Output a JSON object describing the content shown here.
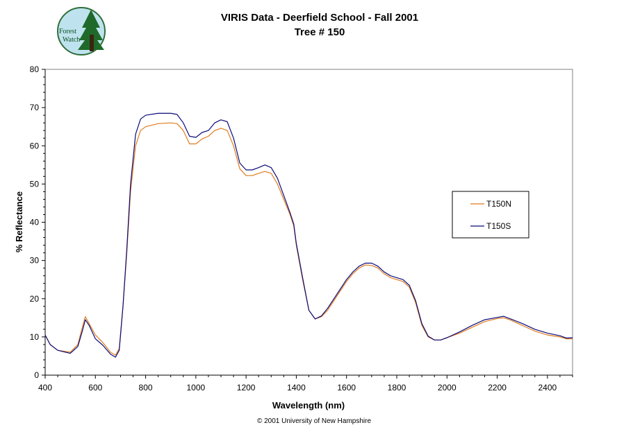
{
  "logo": {
    "line1": "Forest",
    "line2": "Watch"
  },
  "footer": {
    "copyright": "© 2001 University of New Hampshire"
  },
  "chart_data": {
    "type": "line",
    "title": "VIRIS Data - Deerfield School - Fall 2001",
    "subtitle": "Tree # 150",
    "xlabel": "Wavelength (nm)",
    "ylabel": "% Reflectance",
    "xlim": [
      400,
      2500
    ],
    "ylim": [
      0,
      80
    ],
    "xticks": [
      400,
      600,
      800,
      1000,
      1200,
      1400,
      1600,
      1800,
      2000,
      2200,
      2400
    ],
    "yticks": [
      0,
      10,
      20,
      30,
      40,
      50,
      60,
      70,
      80
    ],
    "grid": false,
    "legend_position": "right",
    "series": [
      {
        "name": "T150N",
        "color": "#e07b1e",
        "points": [
          [
            400,
            10.5
          ],
          [
            420,
            8
          ],
          [
            450,
            6.5
          ],
          [
            500,
            6
          ],
          [
            530,
            8
          ],
          [
            550,
            13
          ],
          [
            560,
            15.3
          ],
          [
            575,
            13.5
          ],
          [
            600,
            10.5
          ],
          [
            630,
            8.5
          ],
          [
            660,
            6
          ],
          [
            680,
            5.2
          ],
          [
            695,
            7
          ],
          [
            710,
            18
          ],
          [
            725,
            32
          ],
          [
            740,
            48
          ],
          [
            760,
            60
          ],
          [
            780,
            64
          ],
          [
            800,
            65
          ],
          [
            850,
            65.8
          ],
          [
            900,
            66
          ],
          [
            925,
            65.8
          ],
          [
            950,
            64
          ],
          [
            975,
            60.5
          ],
          [
            1000,
            60.5
          ],
          [
            1025,
            61.8
          ],
          [
            1050,
            62.5
          ],
          [
            1075,
            64
          ],
          [
            1100,
            64.6
          ],
          [
            1125,
            64
          ],
          [
            1150,
            60
          ],
          [
            1175,
            54
          ],
          [
            1200,
            52.2
          ],
          [
            1225,
            52.2
          ],
          [
            1250,
            52.8
          ],
          [
            1275,
            53.3
          ],
          [
            1300,
            52.8
          ],
          [
            1325,
            50
          ],
          [
            1350,
            46
          ],
          [
            1375,
            42
          ],
          [
            1390,
            39
          ],
          [
            1400,
            34
          ],
          [
            1425,
            25
          ],
          [
            1450,
            17
          ],
          [
            1475,
            14.7
          ],
          [
            1500,
            15.3
          ],
          [
            1525,
            17
          ],
          [
            1550,
            19.5
          ],
          [
            1575,
            22
          ],
          [
            1600,
            24.5
          ],
          [
            1625,
            26.5
          ],
          [
            1650,
            28
          ],
          [
            1675,
            28.8
          ],
          [
            1700,
            28.7
          ],
          [
            1725,
            28
          ],
          [
            1750,
            26.5
          ],
          [
            1775,
            25.5
          ],
          [
            1800,
            25
          ],
          [
            1825,
            24.5
          ],
          [
            1850,
            23
          ],
          [
            1875,
            19
          ],
          [
            1900,
            13
          ],
          [
            1925,
            10
          ],
          [
            1950,
            9.2
          ],
          [
            1975,
            9.2
          ],
          [
            2000,
            9.8
          ],
          [
            2050,
            11
          ],
          [
            2100,
            12.5
          ],
          [
            2150,
            14
          ],
          [
            2200,
            14.8
          ],
          [
            2225,
            15
          ],
          [
            2250,
            14.5
          ],
          [
            2300,
            13
          ],
          [
            2350,
            11.5
          ],
          [
            2400,
            10.5
          ],
          [
            2450,
            10
          ],
          [
            2475,
            9.5
          ],
          [
            2500,
            9.5
          ]
        ]
      },
      {
        "name": "T150S",
        "color": "#0b0b7a",
        "points": [
          [
            400,
            10.5
          ],
          [
            420,
            8
          ],
          [
            450,
            6.5
          ],
          [
            500,
            5.7
          ],
          [
            530,
            7.5
          ],
          [
            550,
            12
          ],
          [
            560,
            14.5
          ],
          [
            575,
            13
          ],
          [
            600,
            9.5
          ],
          [
            630,
            7.8
          ],
          [
            660,
            5.5
          ],
          [
            680,
            4.7
          ],
          [
            695,
            6.5
          ],
          [
            710,
            18
          ],
          [
            725,
            33
          ],
          [
            740,
            50
          ],
          [
            760,
            63
          ],
          [
            780,
            67
          ],
          [
            800,
            68
          ],
          [
            850,
            68.5
          ],
          [
            900,
            68.5
          ],
          [
            925,
            68.2
          ],
          [
            950,
            66
          ],
          [
            975,
            62.5
          ],
          [
            1000,
            62.2
          ],
          [
            1025,
            63.5
          ],
          [
            1050,
            64
          ],
          [
            1075,
            66
          ],
          [
            1100,
            66.8
          ],
          [
            1125,
            66.3
          ],
          [
            1150,
            62
          ],
          [
            1175,
            55.5
          ],
          [
            1200,
            53.7
          ],
          [
            1225,
            53.7
          ],
          [
            1250,
            54.3
          ],
          [
            1275,
            55
          ],
          [
            1300,
            54.3
          ],
          [
            1325,
            51.5
          ],
          [
            1350,
            47
          ],
          [
            1375,
            42.5
          ],
          [
            1390,
            39.5
          ],
          [
            1400,
            34.5
          ],
          [
            1425,
            25.5
          ],
          [
            1450,
            17
          ],
          [
            1475,
            14.7
          ],
          [
            1500,
            15.5
          ],
          [
            1525,
            17.5
          ],
          [
            1550,
            20
          ],
          [
            1575,
            22.5
          ],
          [
            1600,
            25
          ],
          [
            1625,
            27
          ],
          [
            1650,
            28.5
          ],
          [
            1675,
            29.3
          ],
          [
            1700,
            29.3
          ],
          [
            1725,
            28.5
          ],
          [
            1750,
            27
          ],
          [
            1775,
            26
          ],
          [
            1800,
            25.5
          ],
          [
            1825,
            25
          ],
          [
            1850,
            23.5
          ],
          [
            1875,
            19.5
          ],
          [
            1900,
            13.5
          ],
          [
            1925,
            10.2
          ],
          [
            1950,
            9.2
          ],
          [
            1975,
            9.2
          ],
          [
            2000,
            9.8
          ],
          [
            2050,
            11.3
          ],
          [
            2100,
            13
          ],
          [
            2150,
            14.5
          ],
          [
            2200,
            15.1
          ],
          [
            2225,
            15.4
          ],
          [
            2250,
            14.8
          ],
          [
            2300,
            13.5
          ],
          [
            2350,
            12
          ],
          [
            2400,
            11
          ],
          [
            2450,
            10.3
          ],
          [
            2475,
            9.7
          ],
          [
            2500,
            9.8
          ]
        ]
      }
    ]
  }
}
